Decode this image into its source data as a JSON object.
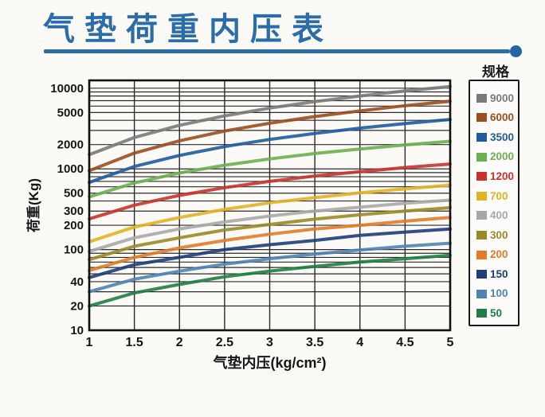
{
  "header": {
    "title": "气垫荷重内压表",
    "accent_color": "#2b6da8"
  },
  "legend": {
    "title": "规格"
  },
  "chart_data": {
    "type": "line",
    "title": "气垫荷重内压表",
    "xlabel": "气垫内压(kg/cm²)",
    "ylabel": "荷重(Kg)",
    "legend_title": "规格",
    "legend_position": "right",
    "grid": "on, full log minor grid",
    "x_scale": "linear",
    "y_scale": "log",
    "xlim": [
      1,
      5
    ],
    "ylim": [
      10,
      12500
    ],
    "x": [
      1,
      1.5,
      2,
      2.5,
      3,
      3.5,
      4,
      4.5,
      5
    ],
    "x_tick_labels": [
      "1",
      "1.5",
      "2",
      "2.5",
      "3",
      "3.5",
      "4",
      "4.5",
      "5"
    ],
    "y_tick_values": [
      10000,
      5000,
      2000,
      1000,
      500,
      300,
      200,
      100,
      40,
      20,
      10
    ],
    "series": [
      {
        "name": "9000",
        "color": "#7a7a7a",
        "values": [
          1500,
          2450,
          3470,
          4540,
          5670,
          6820,
          8010,
          9240,
          10500
        ]
      },
      {
        "name": "6000",
        "color": "#9c4e1d",
        "values": [
          950,
          1570,
          2230,
          2940,
          3680,
          4450,
          5240,
          6070,
          6900
        ]
      },
      {
        "name": "3500",
        "color": "#1d5c9e",
        "values": [
          680,
          1070,
          1470,
          1890,
          2320,
          2750,
          3200,
          3640,
          4100
        ]
      },
      {
        "name": "2000",
        "color": "#6ab04e",
        "values": [
          450,
          670,
          890,
          1110,
          1330,
          1550,
          1760,
          1980,
          2200
        ]
      },
      {
        "name": "1200",
        "color": "#c9332a",
        "values": [
          240,
          355,
          470,
          585,
          700,
          815,
          925,
          1040,
          1150
        ]
      },
      {
        "name": "700",
        "color": "#e2b222",
        "values": [
          125,
          190,
          250,
          315,
          380,
          440,
          505,
          565,
          630
        ]
      },
      {
        "name": "400",
        "color": "#a8a8a8",
        "values": [
          95,
          140,
          180,
          220,
          260,
          300,
          335,
          375,
          410
        ]
      },
      {
        "name": "300",
        "color": "#9a8a26",
        "values": [
          75,
          110,
          140,
          175,
          205,
          238,
          270,
          300,
          330
        ]
      },
      {
        "name": "200",
        "color": "#e07b28",
        "values": [
          55,
          80,
          105,
          130,
          155,
          180,
          200,
          225,
          250
        ]
      },
      {
        "name": "150",
        "color": "#1e3d7a",
        "values": [
          45,
          65,
          80,
          100,
          115,
          130,
          150,
          165,
          180
        ]
      },
      {
        "name": "100",
        "color": "#4f83b5",
        "values": [
          30,
          43,
          54,
          66,
          77,
          88,
          99,
          110,
          120
        ]
      },
      {
        "name": "50",
        "color": "#1e7e44",
        "values": [
          20,
          29,
          37,
          46,
          54,
          62,
          70,
          77,
          85
        ]
      }
    ]
  }
}
